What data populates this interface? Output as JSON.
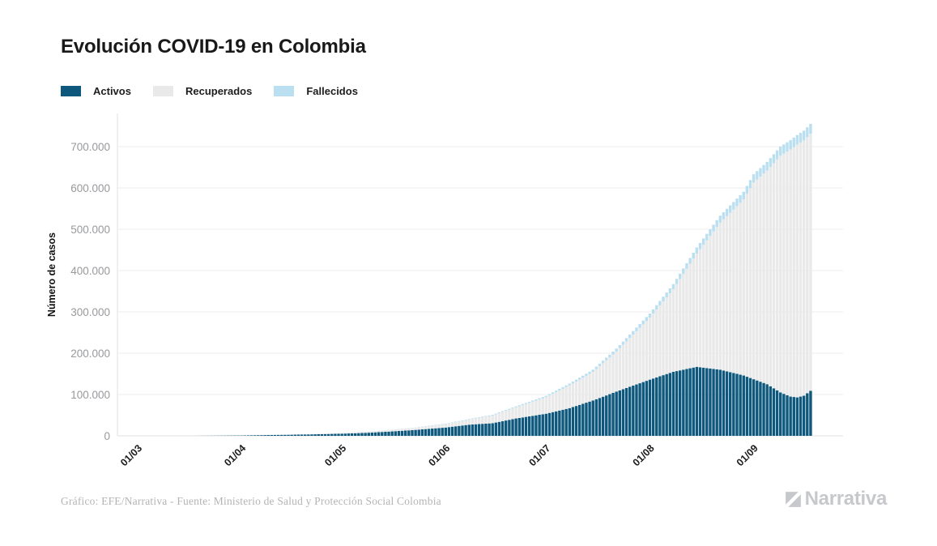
{
  "title": "Evolución COVID-19 en Colombia",
  "footer": {
    "credit": "Gráfico: EFE/Narrativa - Fuente: Ministerio de Salud y Protección Social Colombia",
    "logo_text": "Narrativa",
    "logo_color": "#c6c8cb"
  },
  "chart_data": {
    "type": "bar",
    "subtype": "stacked-daily-bars",
    "title": "Evolución COVID-19 en Colombia",
    "xlabel": "",
    "ylabel": "Número de casos",
    "ylim": [
      0,
      780000
    ],
    "grid": true,
    "legend_position": "top-left",
    "x_tick_labels": [
      "01/03",
      "01/04",
      "01/05",
      "01/06",
      "01/07",
      "01/08",
      "01/09"
    ],
    "y_ticks": [
      "0",
      "100.000",
      "200.000",
      "300.000",
      "400.000",
      "500.000",
      "600.000",
      "700.000"
    ],
    "y_tick_values": [
      0,
      100000,
      200000,
      300000,
      400000,
      500000,
      600000,
      700000
    ],
    "series": [
      {
        "name": "Activos",
        "color": "#0d587c"
      },
      {
        "name": "Recuperados",
        "color": "#e9e9ea"
      },
      {
        "name": "Fallecidos",
        "color": "#b9dff0"
      }
    ],
    "point_format": [
      "date(dd/mm/2020)",
      "activos",
      "recuperados",
      "fallecidos"
    ],
    "points": [
      [
        "01/03",
        0,
        0,
        0
      ],
      [
        "10/03",
        1,
        0,
        0
      ],
      [
        "18/03",
        60,
        3,
        0
      ],
      [
        "25/03",
        400,
        10,
        4
      ],
      [
        "01/04",
        850,
        40,
        16
      ],
      [
        "08/04",
        1850,
        150,
        55
      ],
      [
        "15/04",
        2600,
        250,
        127
      ],
      [
        "22/04",
        3600,
        550,
        210
      ],
      [
        "01/05",
        5180,
        1510,
        315
      ],
      [
        "08/05",
        7100,
        2520,
        430
      ],
      [
        "15/05",
        10200,
        3470,
        550
      ],
      [
        "22/05",
        13740,
        4710,
        680
      ],
      [
        "01/06",
        20100,
        8350,
        940
      ],
      [
        "08/06",
        27000,
        12410,
        1310
      ],
      [
        "15/06",
        30560,
        18720,
        1670
      ],
      [
        "22/06",
        42000,
        26870,
        2310
      ],
      [
        "01/07",
        53500,
        40000,
        3250
      ],
      [
        "08/07",
        67000,
        55000,
        4400
      ],
      [
        "15/07",
        85500,
        69000,
        5630
      ],
      [
        "22/07",
        107000,
        97000,
        7170
      ],
      [
        "01/08",
        136000,
        150000,
        9970
      ],
      [
        "08/08",
        155000,
        200000,
        12250
      ],
      [
        "15/08",
        167000,
        274000,
        14810
      ],
      [
        "22/08",
        160000,
        356000,
        16970
      ],
      [
        "29/08",
        146000,
        426000,
        18770
      ],
      [
        "01/09",
        137000,
        476000,
        20180
      ],
      [
        "05/09",
        125000,
        517000,
        21000
      ],
      [
        "09/09",
        105000,
        573000,
        22100
      ],
      [
        "12/09",
        95000,
        598000,
        22730
      ],
      [
        "14/09",
        93000,
        612000,
        23100
      ],
      [
        "16/09",
        97000,
        618000,
        23500
      ],
      [
        "18/09",
        109000,
        622000,
        24040
      ]
    ]
  }
}
